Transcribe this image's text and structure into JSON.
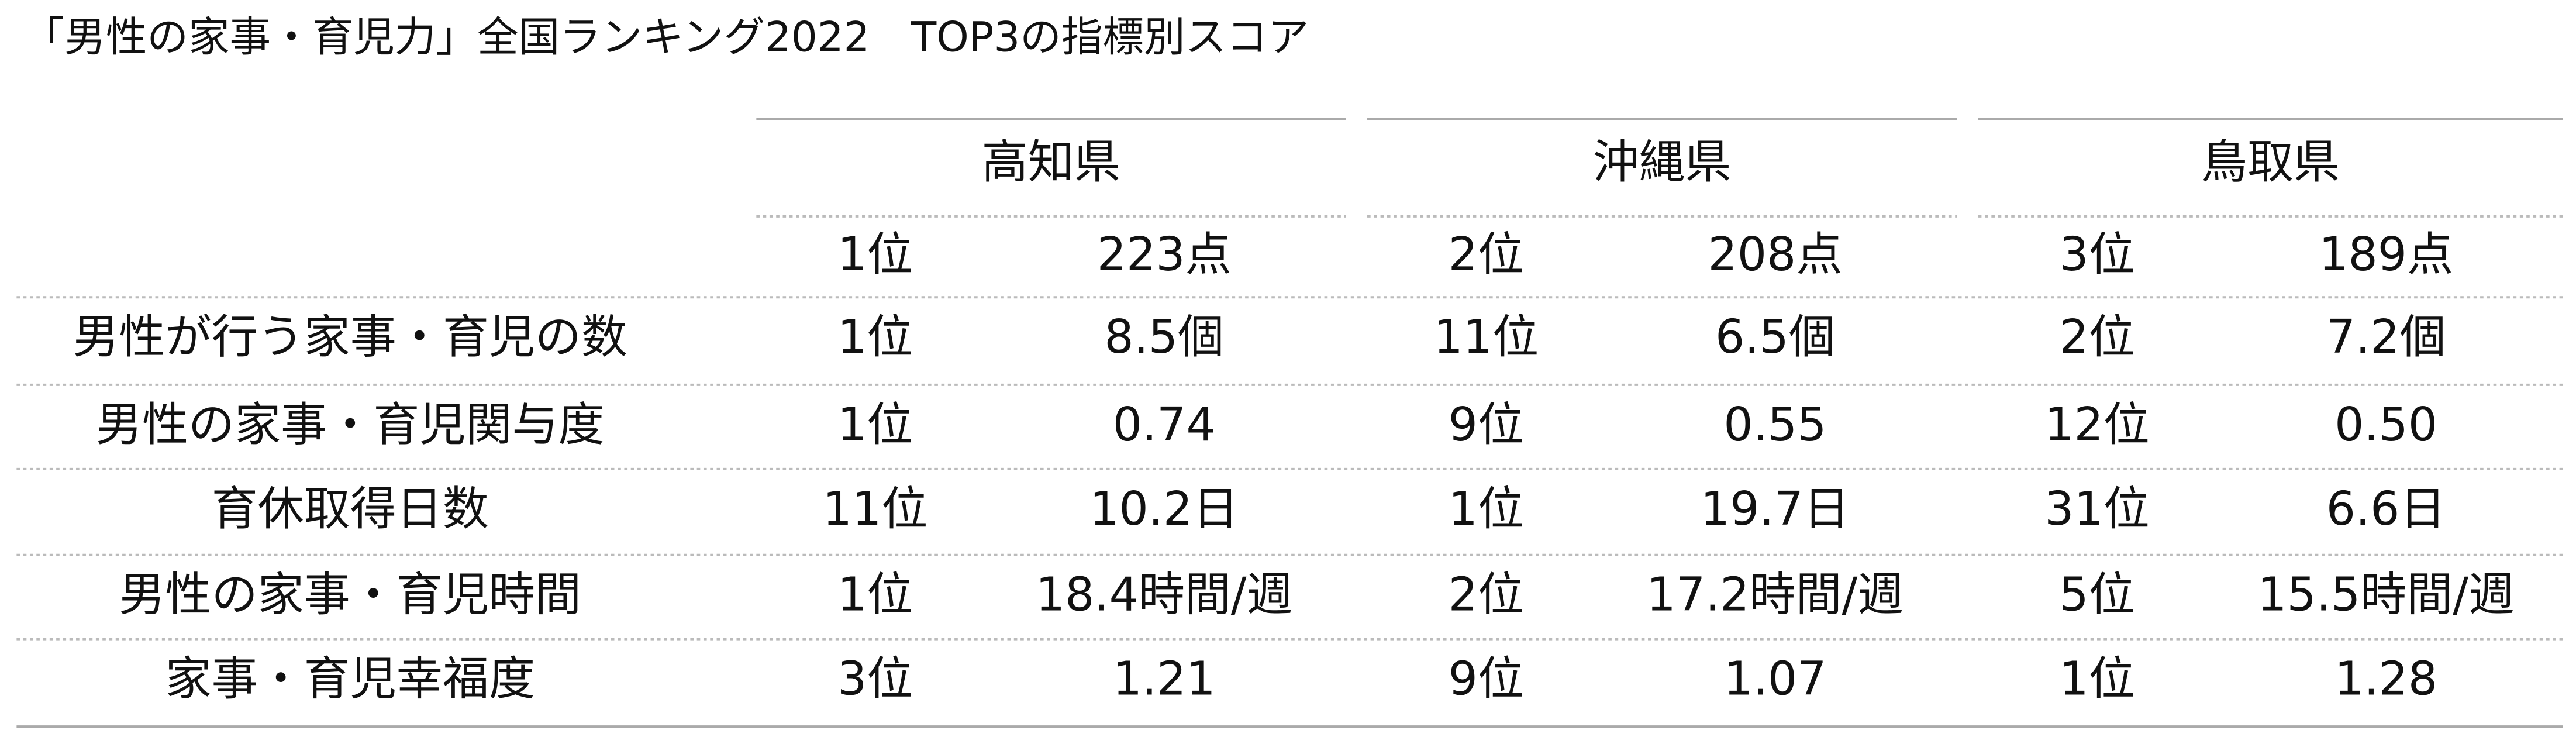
{
  "title": "「男性の家事・育児力」全国ランキング2022　TOP3の指標別スコア",
  "table": {
    "prefectures": [
      "高知県",
      "沖縄県",
      "鳥取県"
    ],
    "overall": [
      [
        "1位",
        "223点"
      ],
      [
        "2位",
        "208点"
      ],
      [
        "3位",
        "189点"
      ]
    ],
    "indicators": [
      "男性が行う家事・育児の数",
      "男性の家事・育児関与度",
      "育休取得日数",
      "男性の家事・育児時間",
      "家事・育児幸福度"
    ],
    "rows": [
      [
        "1位",
        "8.5個",
        "11位",
        "6.5個",
        "2位",
        "7.2個"
      ],
      [
        "1位",
        "0.74",
        "9位",
        "0.55",
        "12位",
        "0.50"
      ],
      [
        "11位",
        "10.2日",
        "1位",
        "19.7日",
        "31位",
        "6.6日"
      ],
      [
        "1位",
        "18.4時間/週",
        "2位",
        "17.2時間/週",
        "5位",
        "15.5時間/週"
      ],
      [
        "3位",
        "1.21",
        "9位",
        "1.07",
        "1位",
        "1.28"
      ]
    ]
  }
}
